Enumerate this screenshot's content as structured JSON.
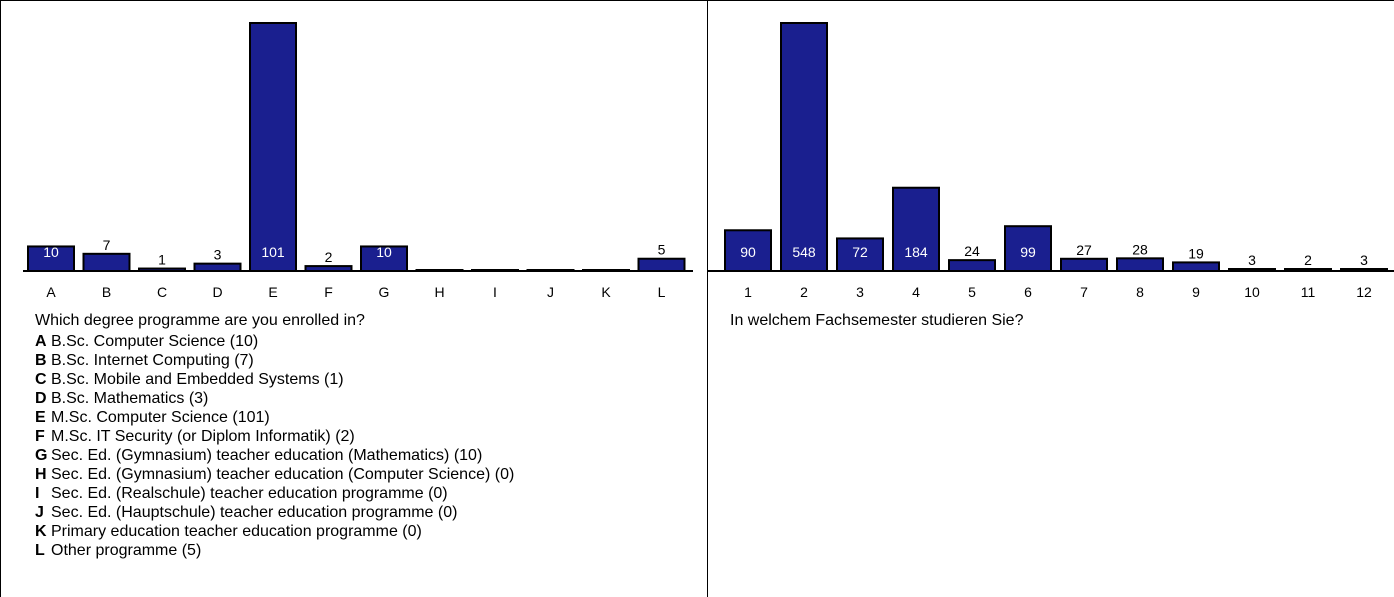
{
  "colors": {
    "bar": "#1a1f8f",
    "bar_stroke": "#000000",
    "background": "#ffffff",
    "label_inside": "#ffffff",
    "label_outside": "#000000"
  },
  "chart_data": [
    {
      "type": "bar",
      "title": "Which degree programme are you enrolled in?",
      "categories": [
        "A",
        "B",
        "C",
        "D",
        "E",
        "F",
        "G",
        "H",
        "I",
        "J",
        "K",
        "L"
      ],
      "values": [
        10,
        7,
        1,
        3,
        101,
        2,
        10,
        0,
        0,
        0,
        0,
        5
      ],
      "value_labels": [
        "10",
        "7",
        "1",
        "3",
        "101",
        "2",
        "10",
        "",
        "",
        "",
        "",
        "5"
      ],
      "ylim": [
        0,
        101
      ],
      "grid": false,
      "legend_position": "below",
      "legend": [
        {
          "key": "A",
          "text": "B.Sc. Computer Science (10)"
        },
        {
          "key": "B",
          "text": "B.Sc. Internet Computing (7)"
        },
        {
          "key": "C",
          "text": "B.Sc. Mobile and Embedded Systems (1)"
        },
        {
          "key": "D",
          "text": "B.Sc. Mathematics (3)"
        },
        {
          "key": "E",
          "text": "M.Sc. Computer Science (101)"
        },
        {
          "key": "F",
          "text": "M.Sc. IT Security (or Diplom Informatik) (2)"
        },
        {
          "key": "G",
          "text": "Sec. Ed. (Gymnasium) teacher education (Mathematics) (10)"
        },
        {
          "key": "H",
          "text": "Sec. Ed. (Gymnasium) teacher education (Computer Science) (0)"
        },
        {
          "key": "I",
          "text": "Sec. Ed. (Realschule) teacher education programme (0)"
        },
        {
          "key": "J",
          "text": "Sec. Ed. (Hauptschule) teacher education programme (0)"
        },
        {
          "key": "K",
          "text": "Primary education teacher education programme (0)"
        },
        {
          "key": "L",
          "text": "Other programme (5)"
        }
      ]
    },
    {
      "type": "bar",
      "title": "In welchem Fachsemester studieren Sie?",
      "categories": [
        "1",
        "2",
        "3",
        "4",
        "5",
        "6",
        "7",
        "8",
        "9",
        "10",
        "11",
        "12"
      ],
      "values": [
        90,
        548,
        72,
        184,
        24,
        99,
        27,
        28,
        19,
        3,
        2,
        3
      ],
      "value_labels": [
        "90",
        "548",
        "72",
        "184",
        "24",
        "99",
        "27",
        "28",
        "19",
        "3",
        "2",
        "3"
      ],
      "ylim": [
        0,
        548
      ],
      "grid": false
    }
  ]
}
